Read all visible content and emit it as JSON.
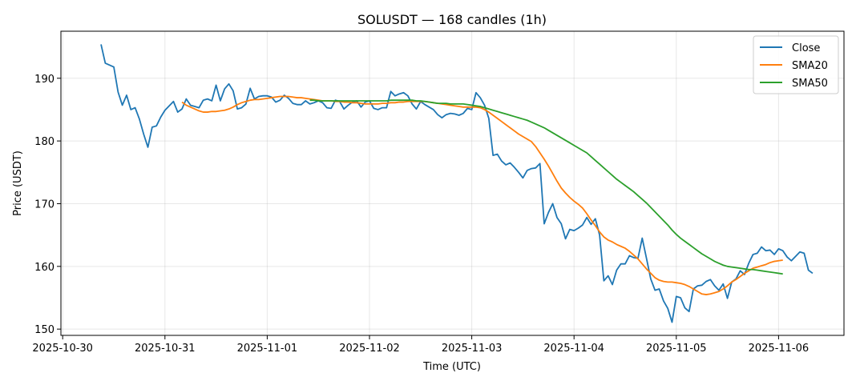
{
  "chart_data": {
    "type": "line",
    "title": "SOLUSDT — 168 candles (1h)",
    "xlabel": "Time (UTC)",
    "ylabel": "Price (USDT)",
    "x_start": "2025-10-30T09:00",
    "x_step_hours": 1,
    "x_ticks": [
      "2025-10-30",
      "2025-10-31",
      "2025-11-01",
      "2025-11-02",
      "2025-11-03",
      "2025-11-04",
      "2025-11-05",
      "2025-11-06"
    ],
    "y_ticks": [
      150,
      160,
      170,
      180,
      190
    ],
    "ylim": [
      149,
      197.5
    ],
    "grid": true,
    "legend_position": "top-right",
    "series": [
      {
        "name": "Close",
        "color": "#1f77b4",
        "values": [
          195.4,
          192.4,
          192.1,
          191.8,
          187.8,
          185.7,
          187.3,
          185.0,
          185.3,
          183.5,
          181.1,
          179.0,
          182.2,
          182.4,
          183.8,
          184.9,
          185.6,
          186.3,
          184.6,
          185.1,
          186.7,
          185.7,
          185.5,
          185.3,
          186.5,
          186.7,
          186.4,
          188.9,
          186.4,
          188.3,
          189.1,
          188.0,
          185.1,
          185.3,
          185.9,
          188.4,
          186.7,
          187.1,
          187.2,
          187.2,
          187.0,
          186.2,
          186.5,
          187.3,
          186.8,
          186.0,
          185.8,
          185.8,
          186.4,
          185.9,
          186.1,
          186.4,
          186.1,
          185.3,
          185.2,
          186.5,
          186.3,
          185.1,
          185.7,
          186.2,
          186.4,
          185.4,
          186.2,
          186.4,
          185.2,
          185.0,
          185.3,
          185.3,
          187.9,
          187.2,
          187.5,
          187.7,
          187.2,
          185.9,
          185.1,
          186.3,
          185.8,
          185.4,
          185.0,
          184.2,
          183.7,
          184.2,
          184.4,
          184.3,
          184.1,
          184.4,
          185.2,
          185.0,
          187.7,
          186.9,
          185.7,
          183.6,
          177.7,
          177.9,
          176.8,
          176.2,
          176.5,
          175.8,
          175.0,
          174.1,
          175.3,
          175.6,
          175.7,
          176.4,
          166.8,
          168.6,
          170.0,
          167.8,
          166.8,
          164.4,
          165.9,
          165.7,
          166.1,
          166.6,
          167.8,
          166.7,
          167.6,
          165.0,
          157.7,
          158.5,
          157.1,
          159.4,
          160.4,
          160.4,
          161.7,
          161.4,
          161.3,
          164.5,
          161.3,
          158.0,
          156.2,
          156.4,
          154.5,
          153.3,
          151.1,
          155.2,
          155.0,
          153.4,
          152.8,
          156.4,
          156.9,
          157.0,
          157.6,
          157.9,
          156.9,
          156.2,
          157.2,
          154.9,
          157.5,
          158.0,
          159.3,
          158.7,
          160.5,
          161.9,
          162.1,
          163.1,
          162.5,
          162.6,
          161.9,
          162.8,
          162.5,
          161.5,
          160.9,
          161.6,
          162.3,
          162.1,
          159.4,
          158.9
        ]
      },
      {
        "name": "SMA20",
        "color": "#ff7f0e",
        "start_index": 19,
        "values": [
          186.2,
          185.7,
          185.4,
          185.1,
          184.8,
          184.6,
          184.6,
          184.7,
          184.7,
          184.8,
          184.9,
          185.1,
          185.4,
          185.8,
          186.1,
          186.3,
          186.5,
          186.6,
          186.6,
          186.7,
          186.8,
          186.9,
          187.0,
          187.1,
          187.1,
          187.1,
          187.0,
          186.9,
          186.9,
          186.8,
          186.7,
          186.6,
          186.5,
          186.4,
          186.4,
          186.4,
          186.3,
          186.3,
          186.2,
          186.2,
          186.1,
          186.1,
          186.0,
          185.9,
          185.9,
          185.9,
          185.9,
          186.0,
          186.0,
          186.1,
          186.1,
          186.2,
          186.2,
          186.3,
          186.3,
          186.3,
          186.3,
          186.3,
          186.2,
          186.1,
          186.0,
          185.9,
          185.8,
          185.7,
          185.6,
          185.5,
          185.4,
          185.4,
          185.4,
          185.4,
          185.3,
          185.0,
          184.6,
          184.1,
          183.6,
          183.1,
          182.6,
          182.1,
          181.6,
          181.1,
          180.7,
          180.3,
          179.9,
          179.1,
          178.1,
          177.1,
          176.0,
          174.8,
          173.6,
          172.5,
          171.7,
          171.0,
          170.4,
          169.9,
          169.3,
          168.4,
          167.4,
          166.5,
          165.5,
          164.7,
          164.2,
          163.9,
          163.5,
          163.2,
          162.9,
          162.4,
          161.8,
          161.2,
          160.4,
          159.6,
          158.9,
          158.2,
          157.8,
          157.6,
          157.5,
          157.5,
          157.4,
          157.3,
          157.1,
          156.8,
          156.4,
          156.0,
          155.6,
          155.5,
          155.6,
          155.8,
          156.0,
          156.4,
          156.9,
          157.5,
          157.9,
          158.4,
          158.9,
          159.3,
          159.7,
          159.9,
          160.1,
          160.3,
          160.6,
          160.8,
          160.9,
          161.0
        ]
      },
      {
        "name": "SMA50",
        "color": "#2ca02c",
        "start_index": 49,
        "values": [
          186.5,
          186.5,
          186.4,
          186.4,
          186.4,
          186.4,
          186.4,
          186.4,
          186.4,
          186.4,
          186.4,
          186.4,
          186.4,
          186.4,
          186.4,
          186.4,
          186.4,
          186.4,
          186.4,
          186.5,
          186.5,
          186.5,
          186.5,
          186.5,
          186.5,
          186.4,
          186.4,
          186.3,
          186.2,
          186.1,
          186.0,
          186.0,
          186.0,
          185.9,
          185.9,
          185.9,
          185.9,
          185.8,
          185.7,
          185.6,
          185.5,
          185.3,
          185.1,
          184.9,
          184.7,
          184.5,
          184.3,
          184.1,
          183.9,
          183.7,
          183.5,
          183.3,
          183.0,
          182.7,
          182.4,
          182.1,
          181.7,
          181.3,
          180.9,
          180.5,
          180.1,
          179.7,
          179.3,
          178.9,
          178.5,
          178.1,
          177.5,
          176.9,
          176.3,
          175.7,
          175.1,
          174.5,
          173.9,
          173.4,
          172.9,
          172.4,
          171.9,
          171.3,
          170.7,
          170.1,
          169.4,
          168.7,
          168.0,
          167.3,
          166.6,
          165.8,
          165.1,
          164.5,
          164.0,
          163.5,
          163.0,
          162.5,
          162.0,
          161.6,
          161.2,
          160.8,
          160.5,
          160.2,
          160.0,
          159.9,
          159.8,
          159.7,
          159.6,
          159.5,
          159.5,
          159.4,
          159.3,
          159.2,
          159.1,
          159.0,
          158.9,
          158.8
        ]
      }
    ]
  }
}
